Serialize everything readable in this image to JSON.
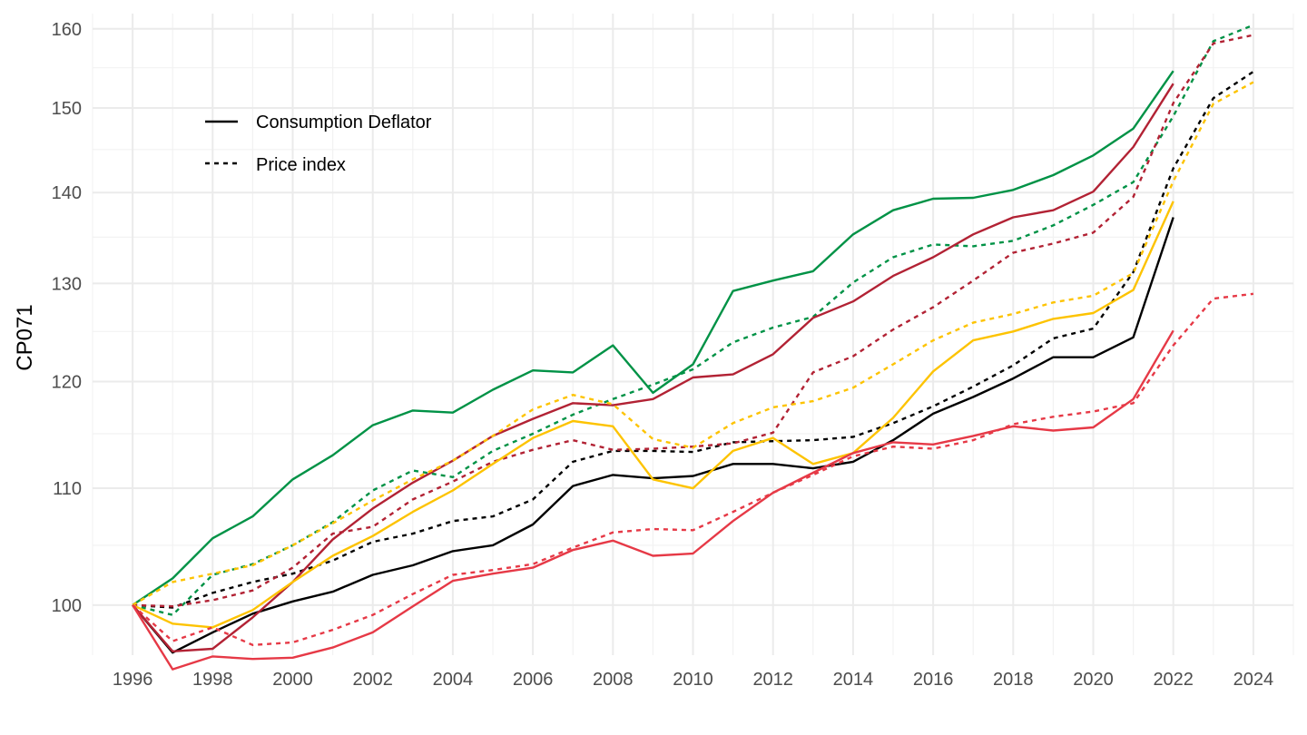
{
  "chart_data": {
    "type": "line",
    "ylabel": "CP071",
    "xlim": [
      1995,
      2025
    ],
    "ylim": [
      96,
      162
    ],
    "y_scale": "log",
    "x_ticks": [
      "1996",
      "1998",
      "2000",
      "2002",
      "2004",
      "2006",
      "2008",
      "2010",
      "2012",
      "2014",
      "2016",
      "2018",
      "2020",
      "2022",
      "2024"
    ],
    "y_ticks": [
      "100",
      "110",
      "120",
      "130",
      "140",
      "150",
      "160"
    ],
    "grid": true,
    "legend": {
      "position": "top-left",
      "entries": [
        {
          "label": "Consumption Deflator",
          "linetype": "solid"
        },
        {
          "label": "Price index",
          "linetype": "dashed"
        }
      ]
    },
    "series": [
      {
        "color": "#000000",
        "linetype": "solid",
        "x_start": 1996,
        "values": [
          100,
          96.2,
          97.8,
          99.3,
          100.3,
          101.1,
          102.5,
          103.3,
          104.5,
          105.0,
          106.8,
          110.2,
          111.2,
          110.9,
          111.1,
          112.2,
          112.2,
          111.8,
          112.4,
          114.4,
          116.9,
          118.5,
          120.3,
          122.4,
          122.4,
          124.4,
          137.2
        ]
      },
      {
        "color": "#000000",
        "linetype": "dashed",
        "x_start": 1996,
        "values": [
          100,
          99.8,
          101.0,
          101.9,
          102.6,
          103.7,
          105.3,
          106.0,
          107.1,
          107.5,
          109.0,
          112.4,
          113.4,
          113.4,
          113.3,
          114.2,
          114.3,
          114.4,
          114.7,
          116.0,
          117.6,
          119.5,
          121.6,
          124.3,
          125.3,
          131.2,
          142.8,
          151.2,
          154.5
        ]
      },
      {
        "color": "#009246",
        "linetype": "solid",
        "x_start": 1996,
        "values": [
          100,
          102.2,
          105.6,
          107.5,
          110.8,
          113.0,
          115.8,
          117.2,
          117.0,
          119.2,
          121.1,
          120.9,
          123.6,
          118.9,
          121.7,
          129.2,
          130.3,
          131.3,
          135.3,
          138.0,
          139.3,
          139.4,
          140.3,
          142.0,
          144.3,
          147.5,
          154.6
        ]
      },
      {
        "color": "#009246",
        "linetype": "dashed",
        "x_start": 1996,
        "values": [
          100,
          99.2,
          102.5,
          103.4,
          105.0,
          107.0,
          109.8,
          111.6,
          111.0,
          113.4,
          115.0,
          116.8,
          118.3,
          119.7,
          121.2,
          123.9,
          125.4,
          126.5,
          130.1,
          132.8,
          134.2,
          134.0,
          134.6,
          136.3,
          138.6,
          141.2,
          149.0,
          158.4,
          160.5
        ]
      },
      {
        "color": "#b22234",
        "linetype": "solid",
        "x_start": 1996,
        "values": [
          100,
          96.3,
          96.5,
          99.0,
          101.9,
          105.5,
          108.2,
          110.5,
          112.5,
          114.8,
          116.4,
          117.9,
          117.7,
          118.3,
          120.4,
          120.7,
          122.7,
          126.4,
          128.1,
          130.8,
          132.8,
          135.3,
          137.2,
          138.0,
          140.1,
          145.3,
          153.0
        ]
      },
      {
        "color": "#b22234",
        "linetype": "dashed",
        "x_start": 1996,
        "values": [
          100,
          99.9,
          100.4,
          101.2,
          103.1,
          106.0,
          106.6,
          109.0,
          110.6,
          112.4,
          113.5,
          114.4,
          113.5,
          113.6,
          113.8,
          114.1,
          115.1,
          120.9,
          122.5,
          125.2,
          127.5,
          130.3,
          133.3,
          134.3,
          135.5,
          139.5,
          150.6,
          158.1,
          159.2
        ]
      },
      {
        "color": "#fdc300",
        "linetype": "solid",
        "x_start": 1996,
        "values": [
          100,
          98.5,
          98.2,
          99.6,
          101.9,
          104.1,
          105.8,
          107.9,
          109.8,
          112.2,
          114.6,
          116.2,
          115.7,
          110.8,
          110.0,
          113.4,
          114.6,
          112.2,
          113.2,
          116.5,
          121.0,
          124.1,
          125.0,
          126.3,
          126.9,
          129.3,
          139.0
        ]
      },
      {
        "color": "#fdc300",
        "linetype": "dashed",
        "x_start": 1996,
        "values": [
          100,
          101.9,
          102.6,
          103.3,
          105.0,
          106.9,
          108.9,
          110.8,
          112.5,
          114.8,
          117.3,
          118.7,
          117.8,
          114.5,
          113.7,
          116.0,
          117.5,
          118.1,
          119.4,
          121.7,
          124.1,
          125.9,
          126.8,
          128.0,
          128.7,
          131.1,
          141.3,
          150.5,
          153.2
        ]
      },
      {
        "color": "#e63946",
        "linetype": "solid",
        "x_start": 1996,
        "values": [
          100,
          94.9,
          95.9,
          95.7,
          95.8,
          96.6,
          97.8,
          99.9,
          102.0,
          102.6,
          103.1,
          104.6,
          105.4,
          104.1,
          104.3,
          107.1,
          109.6,
          111.4,
          113.2,
          114.2,
          114.0,
          114.8,
          115.7,
          115.3,
          115.6,
          118.3,
          125.1
        ]
      },
      {
        "color": "#e63946",
        "linetype": "dashed",
        "x_start": 1996,
        "values": [
          100,
          97.1,
          98.2,
          96.8,
          97.0,
          98.0,
          99.2,
          100.9,
          102.5,
          102.9,
          103.4,
          104.8,
          106.1,
          106.4,
          106.3,
          107.9,
          109.6,
          111.2,
          112.9,
          113.8,
          113.6,
          114.4,
          115.9,
          116.6,
          117.1,
          117.9,
          123.6,
          128.4,
          128.9
        ]
      }
    ]
  }
}
